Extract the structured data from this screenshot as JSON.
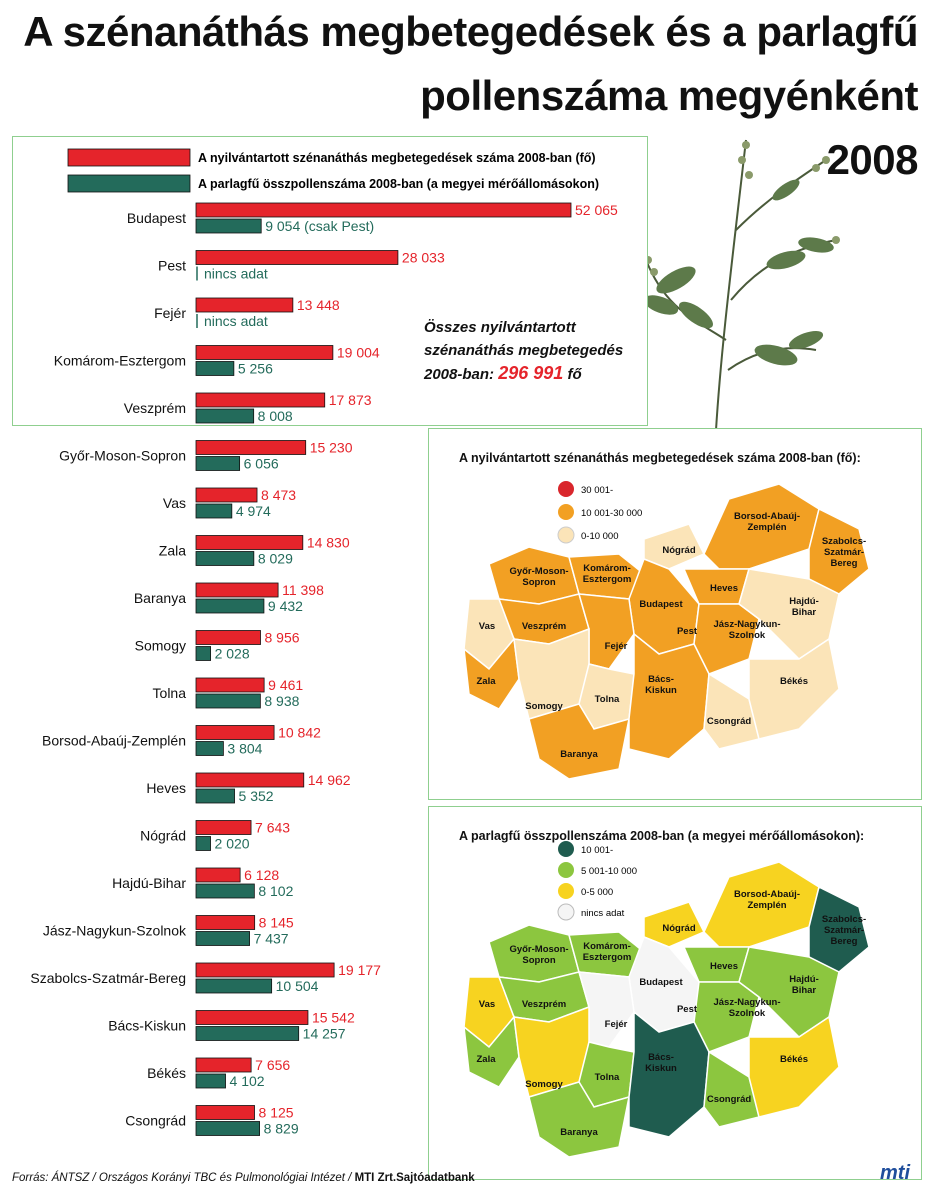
{
  "title": {
    "line1": "A szénanáthás megbetegedések és a parlagfű",
    "line2": "pollenszáma megyénként",
    "line3": "2008"
  },
  "colors": {
    "cases": "#e5242b",
    "pollen": "#236b5b",
    "map1_high": "#d9262c",
    "map1_mid": "#f2a023",
    "map1_low": "#fbe4b8",
    "map2_high": "#1f5c4f",
    "map2_mid": "#8cc63f",
    "map2_low": "#f7d320",
    "map2_nodata": "#f5f5f5"
  },
  "chart_data": {
    "type": "bar",
    "orientation": "horizontal",
    "legend": [
      "A nyilvántartott szénanáthás megbetegedések száma 2008-ban (fő)",
      "A parlagfű összpollenszáma 2008-ban (a megyei mérőállomásokon)"
    ],
    "categories": [
      "Budapest",
      "Pest",
      "Fejér",
      "Komárom-Esztergom",
      "Veszprém",
      "Győr-Moson-Sopron",
      "Vas",
      "Zala",
      "Baranya",
      "Somogy",
      "Tolna",
      "Borsod-Abaúj-Zemplén",
      "Heves",
      "Nógrád",
      "Hajdú-Bihar",
      "Jász-Nagykun-Szolnok",
      "Szabolcs-Szatmár-Bereg",
      "Bács-Kiskun",
      "Békés",
      "Csongrád"
    ],
    "series": [
      {
        "name": "A nyilvántartott szénanáthás megbetegedések száma 2008-ban (fő)",
        "values": [
          52065,
          28033,
          13448,
          19004,
          17873,
          15230,
          8473,
          14830,
          11398,
          8956,
          9461,
          10842,
          14962,
          7643,
          6128,
          8145,
          19177,
          15542,
          7656,
          8125
        ],
        "labels": [
          "52 065",
          "28 033",
          "13 448",
          "19 004",
          "17 873",
          "15 230",
          "8 473",
          "14 830",
          "11 398",
          "8 956",
          "9 461",
          "10 842",
          "14 962",
          "7 643",
          "6 128",
          "8 145",
          "19 177",
          "15 542",
          "7 656",
          "8 125"
        ]
      },
      {
        "name": "A parlagfű összpollenszáma 2008-ban (a megyei mérőállomásokon)",
        "values": [
          9054,
          null,
          null,
          5256,
          8008,
          6056,
          4974,
          8029,
          9432,
          2028,
          8938,
          3804,
          5352,
          2020,
          8102,
          7437,
          10504,
          14257,
          4102,
          8829
        ],
        "labels": [
          "9 054 (csak Pest)",
          "nincs adat",
          "nincs adat",
          "5 256",
          "8 008",
          "6 056",
          "4 974",
          "8 029",
          "9 432",
          "2 028",
          "8 938",
          "3 804",
          "5 352",
          "2 020",
          "8 102",
          "7 437",
          "10 504",
          "14 257",
          "4 102",
          "8 829"
        ]
      }
    ],
    "total_note": {
      "line1": "Összes nyilvántartott",
      "line2": "szénanáthás megbetegedés",
      "line3_prefix": "2008-ban:",
      "value": "296 991",
      "unit": "fő"
    }
  },
  "map1": {
    "title": "A nyilvántartott szénanáthás megbetegedések száma 2008-ban (fő):",
    "legend": [
      "30 001-",
      "10 001-30 000",
      "0-10 000"
    ]
  },
  "map2": {
    "title": "A parlagfű összpollenszáma 2008-ban (a megyei mérőállomásokon):",
    "legend": [
      "10 001-",
      "5 001-10 000",
      "0-5 000",
      "nincs adat"
    ]
  },
  "map_labels": {
    "gyor": "Győr-Moson-",
    "gyor2": "Sopron",
    "komarom": "Komárom-",
    "komarom2": "Esztergom",
    "nograd": "Nógrád",
    "borsod": "Borsod-Abaúj-",
    "borsod2": "Zemplén",
    "szabolcs": "Szabolcs-",
    "szabolcs2": "Szatmár-",
    "szabolcs3": "Bereg",
    "heves": "Heves",
    "budapest": "Budapest",
    "pest": "Pest",
    "jasz": "Jász-Nagykun-",
    "jasz2": "Szolnok",
    "hajdu": "Hajdú-",
    "hajdu2": "Bihar",
    "vas": "Vas",
    "veszprem": "Veszprém",
    "fejer": "Fejér",
    "zala": "Zala",
    "somogy": "Somogy",
    "tolna": "Tolna",
    "bacs": "Bács-",
    "bacs2": "Kiskun",
    "bekes": "Békés",
    "csongrad": "Csongrád",
    "baranya": "Baranya"
  },
  "footer": {
    "source": "Forrás: ÁNTSZ / Országos Korányi TBC és Pulmonológiai Intézet /",
    "source_bold": "MTI Zrt.Sajtóadatbank",
    "logo": "mti"
  }
}
